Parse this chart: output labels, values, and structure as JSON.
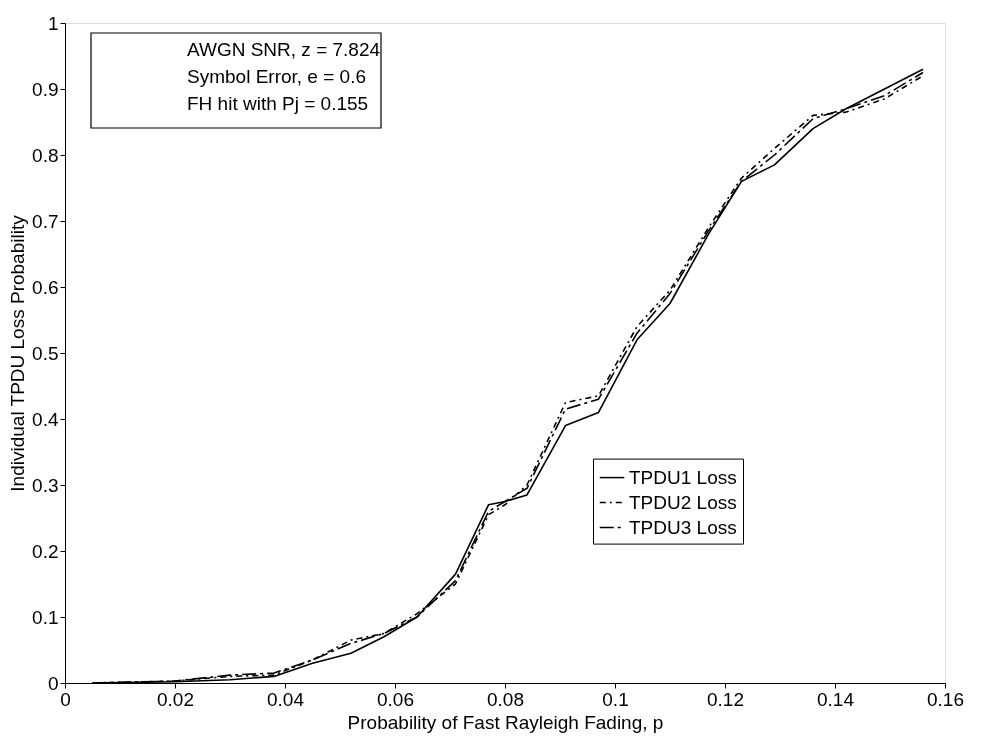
{
  "chart_data": {
    "type": "line",
    "xlabel": "Probability of Fast Rayleigh Fading, p",
    "ylabel": "Individual TPDU Loss Probability",
    "xlim": [
      0,
      0.16
    ],
    "xticks": [
      0,
      0.02,
      0.04,
      0.06,
      0.08,
      0.1,
      0.12,
      0.14,
      0.16
    ],
    "ylim": [
      0,
      1
    ],
    "yticks": [
      0,
      0.1,
      0.2,
      0.3,
      0.4,
      0.5,
      0.6,
      0.7,
      0.8,
      0.9,
      1
    ],
    "grid": false,
    "legend": "bottom right",
    "marker": "none",
    "annotations": [
      "AWGN SNR, z = 7.824",
      "Symbol Error, e = 0.6",
      "FH hit with Pj = 0.155"
    ],
    "x": [
      0.005,
      0.02,
      0.03,
      0.038,
      0.045,
      0.052,
      0.058,
      0.064,
      0.071,
      0.077,
      0.08,
      0.084,
      0.091,
      0.097,
      0.104,
      0.11,
      0.117,
      0.123,
      0.129,
      0.136,
      0.142,
      0.149,
      0.156
    ],
    "series": [
      {
        "name": "TPDU1 Loss",
        "color": "#000000",
        "line_style": "solid",
        "values": [
          0,
          0.002,
          0.005,
          0.01,
          0.03,
          0.045,
          0.07,
          0.1,
          0.165,
          0.27,
          0.275,
          0.285,
          0.39,
          0.41,
          0.52,
          0.575,
          0.68,
          0.76,
          0.785,
          0.84,
          0.87,
          0.9,
          0.93
        ]
      },
      {
        "name": "TPDU2 Loss",
        "color": "#000000",
        "line_style": "dotted",
        "values": [
          0,
          0.003,
          0.01,
          0.012,
          0.035,
          0.065,
          0.075,
          0.105,
          0.15,
          0.255,
          0.27,
          0.3,
          0.425,
          0.435,
          0.54,
          0.595,
          0.69,
          0.765,
          0.81,
          0.86,
          0.865,
          0.885,
          0.92
        ]
      },
      {
        "name": "TPDU3 Loss",
        "color": "#000000",
        "line_style": "dashed",
        "values": [
          0,
          0.003,
          0.012,
          0.015,
          0.035,
          0.06,
          0.075,
          0.1,
          0.155,
          0.26,
          0.275,
          0.295,
          0.415,
          0.43,
          0.53,
          0.59,
          0.685,
          0.76,
          0.8,
          0.855,
          0.87,
          0.89,
          0.925
        ]
      }
    ]
  }
}
